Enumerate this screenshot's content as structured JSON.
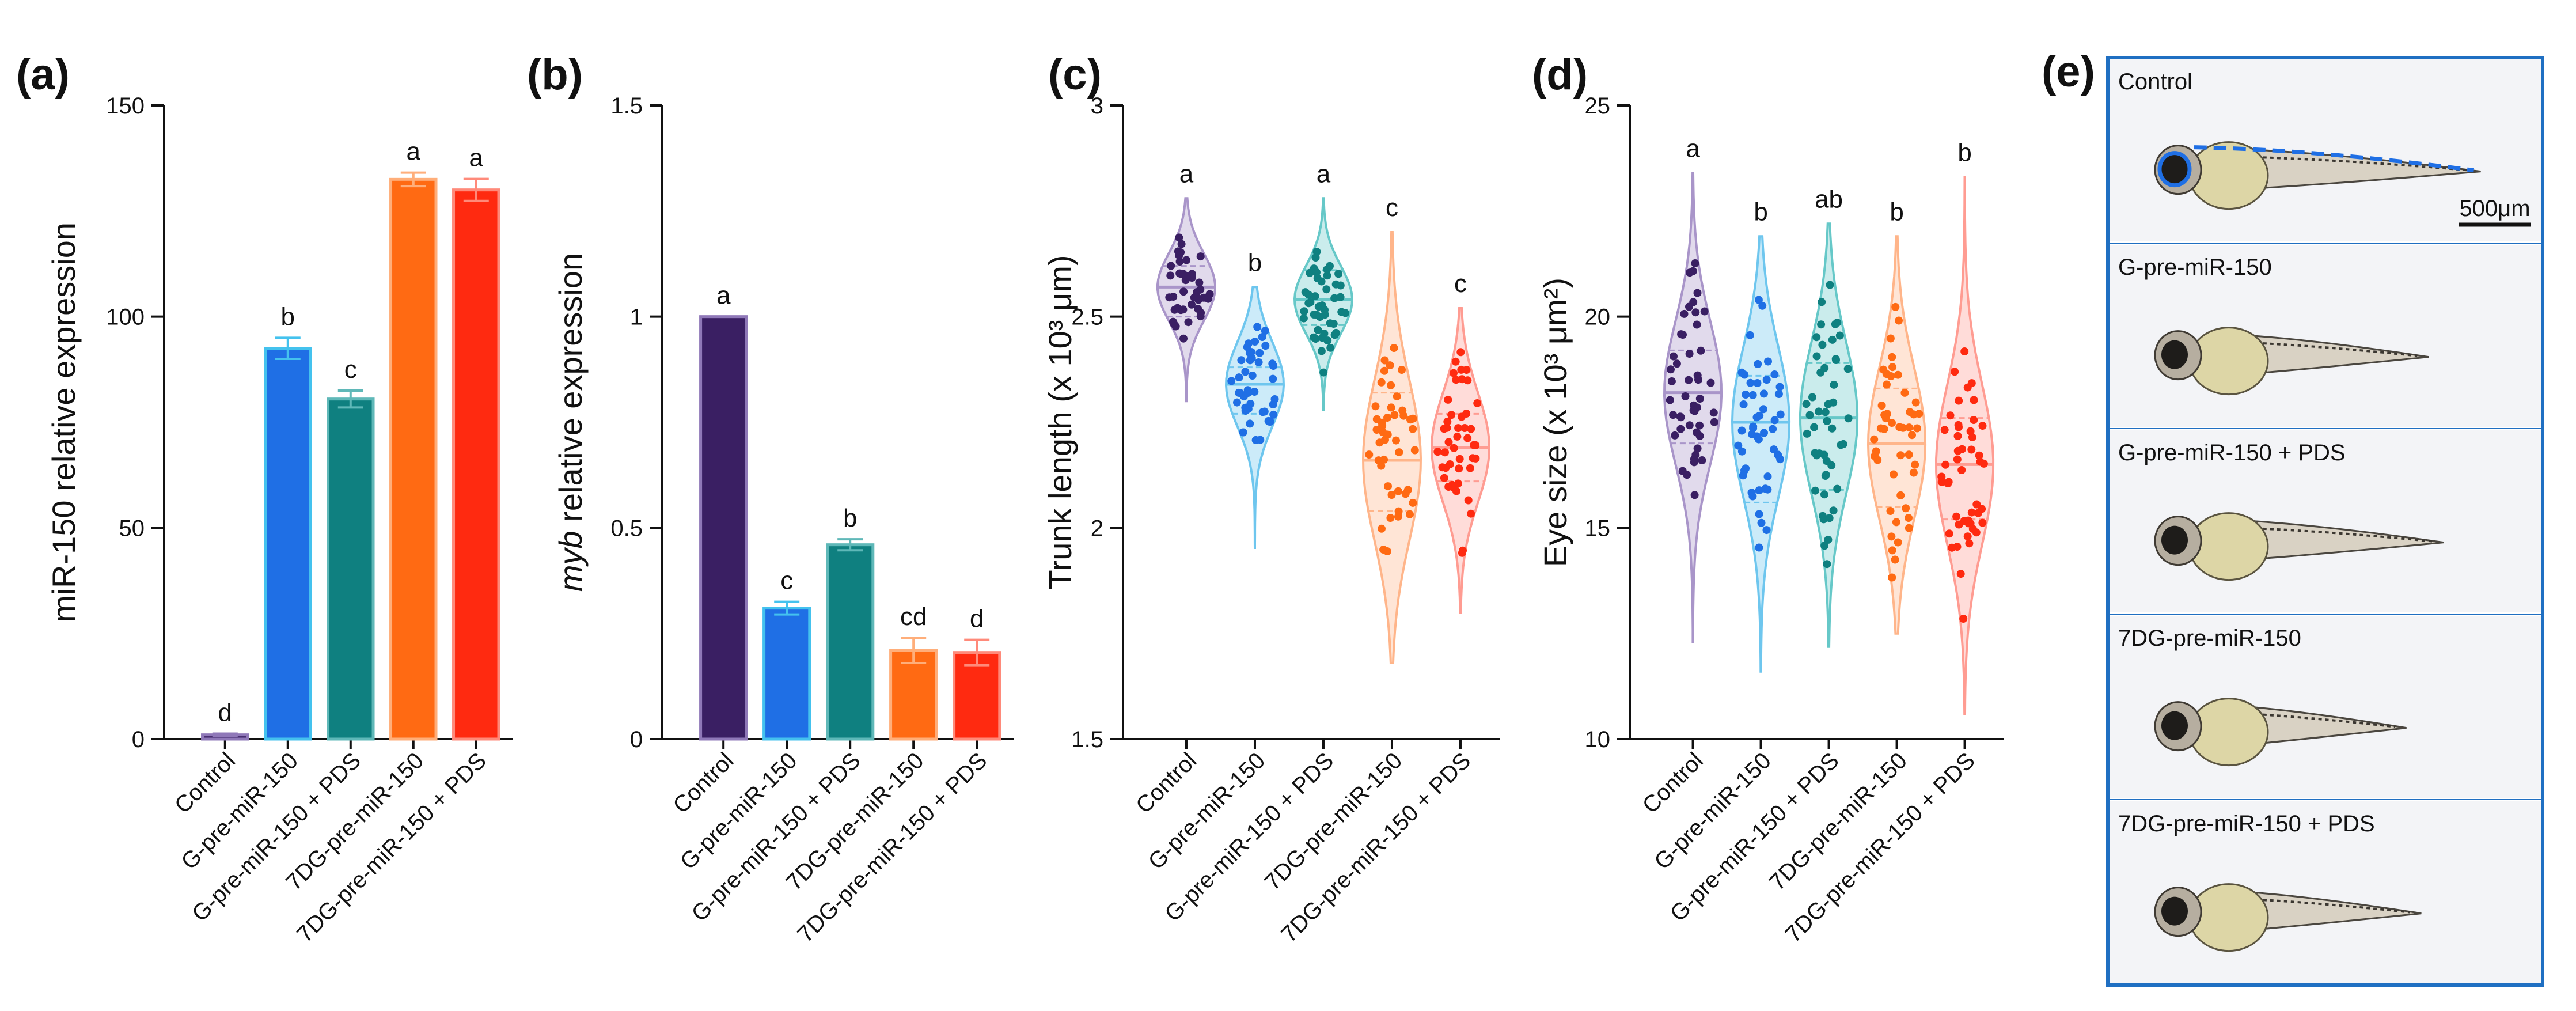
{
  "panels_e": {
    "letter": "(e)",
    "scale_bar": "500μm",
    "labels": [
      "Control",
      "G-pre-miR-150",
      "G-pre-miR-150 + PDS",
      "7DG-pre-miR-150",
      "7DG-pre-miR-150 + PDS"
    ],
    "frame_color": "#1f6fc2"
  },
  "chart_data": [
    {
      "letter": "(a)",
      "type": "bar",
      "title": "",
      "ylabel": "miR-150 relative expression",
      "ylim": [
        0,
        150
      ],
      "yticks": [
        "0",
        "50",
        "100",
        "150"
      ],
      "ytick_values": [
        0,
        50,
        100,
        150
      ],
      "categories": [
        "Control",
        "G-pre-miR-150",
        "G-pre-miR-150 + PDS",
        "7DG-pre-miR-150",
        "7DG-pre-miR-150 + PDS"
      ],
      "values": [
        1,
        92.5,
        80.5,
        132.5,
        130
      ],
      "errors": [
        0.3,
        2.5,
        2.0,
        1.6,
        2.6
      ],
      "letters": [
        "d",
        "b",
        "c",
        "a",
        "a"
      ],
      "colors": [
        "#3a1f63",
        "#1f6fe5",
        "#0f8080",
        "#ff6a13",
        "#ff2a10"
      ],
      "err_colors": [
        "#8f78b8",
        "#44c2ee",
        "#5fb8b8",
        "#ffae7a",
        "#ff8a7a"
      ]
    },
    {
      "letter": "(b)",
      "type": "bar",
      "title": "",
      "ylabel_italic": "myb",
      "ylabel_rest": " relative expression",
      "ylim": [
        0,
        1.5
      ],
      "yticks": [
        "0",
        "0.5",
        "1",
        "1.5"
      ],
      "ytick_values": [
        0,
        0.5,
        1,
        1.5
      ],
      "categories": [
        "Control",
        "G-pre-miR-150",
        "G-pre-miR-150 + PDS",
        "7DG-pre-miR-150",
        "7DG-pre-miR-150 + PDS"
      ],
      "values": [
        1.0,
        0.31,
        0.46,
        0.21,
        0.205
      ],
      "errors": [
        0.0,
        0.015,
        0.013,
        0.03,
        0.03
      ],
      "letters": [
        "a",
        "c",
        "b",
        "cd",
        "d"
      ],
      "colors": [
        "#3a1f63",
        "#1f6fe5",
        "#0f8080",
        "#ff6a13",
        "#ff2a10"
      ],
      "err_colors": [
        "#8f78b8",
        "#44c2ee",
        "#5fb8b8",
        "#ffae7a",
        "#ff8a7a"
      ]
    },
    {
      "letter": "(c)",
      "type": "violin",
      "title": "",
      "ylabel": "Trunk length (x 10³ μm)",
      "ylim": [
        1.5,
        3.0
      ],
      "yticks": [
        "1.5",
        "2",
        "2.5",
        "3"
      ],
      "ytick_values": [
        1.5,
        2.0,
        2.5,
        3.0
      ],
      "categories": [
        "Control",
        "G-pre-miR-150",
        "G-pre-miR-150 + PDS",
        "7DG-pre-miR-150",
        "7DG-pre-miR-150 + PDS"
      ],
      "groups": [
        {
          "min": 2.3,
          "max": 2.78,
          "q1": 2.5,
          "median": 2.57,
          "q3": 2.62,
          "sd": 0.08,
          "n": 42
        },
        {
          "min": 1.95,
          "max": 2.57,
          "q1": 2.27,
          "median": 2.34,
          "q3": 2.38,
          "sd": 0.1,
          "n": 45
        },
        {
          "min": 2.28,
          "max": 2.78,
          "q1": 2.48,
          "median": 2.54,
          "q3": 2.61,
          "sd": 0.08,
          "n": 45
        },
        {
          "min": 1.68,
          "max": 2.7,
          "q1": 2.04,
          "median": 2.16,
          "q3": 2.32,
          "sd": 0.19,
          "n": 45
        },
        {
          "min": 1.8,
          "max": 2.52,
          "q1": 2.11,
          "median": 2.19,
          "q3": 2.27,
          "sd": 0.13,
          "n": 45
        }
      ],
      "letters": [
        "a",
        "b",
        "a",
        "c",
        "c"
      ],
      "colors": [
        "#3a1f63",
        "#1f6fe5",
        "#0f8080",
        "#ff6a13",
        "#ff2a10"
      ],
      "fill_colors": [
        "#a995c9",
        "#6ec6ee",
        "#66c8c8",
        "#ffb58a",
        "#ff9c92"
      ]
    },
    {
      "letter": "(d)",
      "type": "violin",
      "title": "",
      "ylabel": "Eye size (x 10³ μm²)",
      "ylim": [
        10,
        25
      ],
      "yticks": [
        "10",
        "15",
        "20",
        "25"
      ],
      "ytick_values": [
        10,
        15,
        20,
        25
      ],
      "categories": [
        "Control",
        "G-pre-miR-150",
        "G-pre-miR-150 + PDS",
        "7DG-pre-miR-150",
        "7DG-pre-miR-150 + PDS"
      ],
      "groups": [
        {
          "min": 12.3,
          "max": 23.4,
          "q1": 17.0,
          "median": 18.2,
          "q3": 19.2,
          "sd": 1.7,
          "n": 48
        },
        {
          "min": 11.6,
          "max": 21.9,
          "q1": 15.6,
          "median": 17.5,
          "q3": 18.6,
          "sd": 1.8,
          "n": 48
        },
        {
          "min": 12.2,
          "max": 22.2,
          "q1": 15.9,
          "median": 17.6,
          "q3": 18.9,
          "sd": 1.8,
          "n": 48
        },
        {
          "min": 12.5,
          "max": 21.9,
          "q1": 15.5,
          "median": 17.0,
          "q3": 18.3,
          "sd": 1.8,
          "n": 48
        },
        {
          "min": 10.6,
          "max": 23.3,
          "q1": 15.2,
          "median": 16.5,
          "q3": 17.6,
          "sd": 1.9,
          "n": 48
        }
      ],
      "letters": [
        "a",
        "b",
        "ab",
        "b",
        "b"
      ],
      "colors": [
        "#3a1f63",
        "#1f6fe5",
        "#0f8080",
        "#ff6a13",
        "#ff2a10"
      ],
      "fill_colors": [
        "#a995c9",
        "#6ec6ee",
        "#66c8c8",
        "#ffb58a",
        "#ff9c92"
      ]
    }
  ]
}
